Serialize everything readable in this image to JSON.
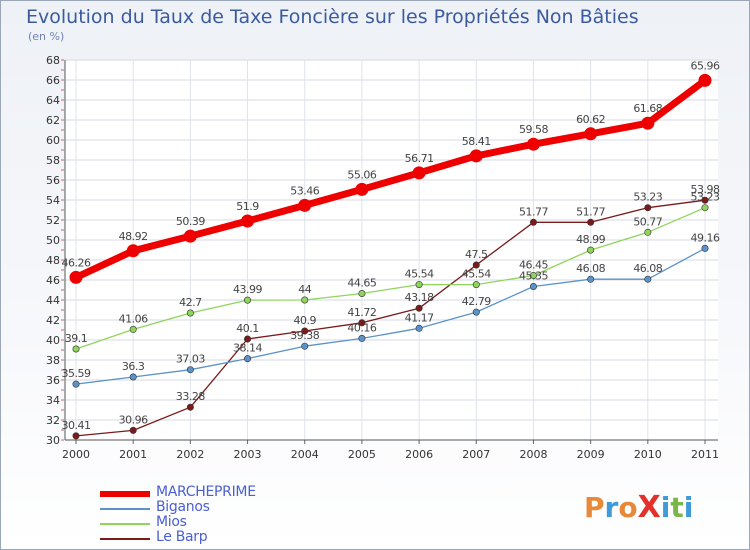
{
  "title": "Evolution du Taux de Taxe Foncière sur les Propriétés Non Bâties",
  "subtitle": "(en %)",
  "logo": {
    "text": "ProXiti",
    "letter_colors": [
      "#e8893a",
      "#3f9ad8",
      "#e8893a",
      "#e2312b",
      "#3f9ad8",
      "#7ab648",
      "#3f9ad8"
    ]
  },
  "chart_data": {
    "type": "line",
    "title": "Evolution du Taux de Taxe Foncière sur les Propriétés Non Bâties",
    "ylabel": "(en %)",
    "xlabel": "",
    "categories": [
      "2000",
      "2001",
      "2002",
      "2003",
      "2004",
      "2005",
      "2006",
      "2007",
      "2008",
      "2009",
      "2010",
      "2011"
    ],
    "ylim": [
      30,
      68
    ],
    "yticks": [
      30,
      32,
      34,
      36,
      38,
      40,
      42,
      44,
      46,
      48,
      50,
      52,
      54,
      56,
      58,
      60,
      62,
      64,
      66,
      68
    ],
    "grid": true,
    "legend_position": "bottom-left",
    "series": [
      {
        "name": "MARCHEPRIME",
        "color": "#ee0000",
        "highlight": true,
        "values": [
          46.26,
          48.92,
          50.39,
          51.9,
          53.46,
          55.06,
          56.71,
          58.41,
          59.58,
          60.62,
          61.68,
          65.96
        ],
        "labels": [
          "46.26",
          "48.92",
          "50.39",
          "51.9",
          "53.46",
          "55.06",
          "56.71",
          "58.41",
          "59.58",
          "60.62",
          "61.68",
          "65.96"
        ]
      },
      {
        "name": "Biganos",
        "color": "#5b93c9",
        "values": [
          35.59,
          36.3,
          37.03,
          38.14,
          39.38,
          40.16,
          41.17,
          42.79,
          45.35,
          46.08,
          46.08,
          49.16
        ],
        "labels": [
          "35.59",
          "36.3",
          "37.03",
          "38.14",
          "39.38",
          "40.16",
          "41.17",
          "42.79",
          "45.35",
          "46.08",
          "46.08",
          "49.16"
        ]
      },
      {
        "name": "Mios",
        "color": "#8fd45b",
        "values": [
          39.1,
          41.06,
          42.7,
          43.99,
          44,
          44.65,
          45.54,
          45.54,
          46.45,
          48.99,
          50.77,
          53.23
        ],
        "labels": [
          "39.1",
          "41.06",
          "42.7",
          "43.99",
          "44",
          "44.65",
          "45.54",
          "45.54",
          "46.45",
          "48.99",
          "50.77",
          "53.23"
        ]
      },
      {
        "name": "Le Barp",
        "color": "#7a1a1a",
        "values": [
          30.41,
          30.96,
          33.28,
          40.1,
          40.9,
          41.72,
          43.18,
          47.5,
          51.77,
          51.77,
          53.23,
          53.98
        ],
        "labels": [
          "30.41",
          "30.96",
          "33.28",
          "40.1",
          "40.9",
          "41.72",
          "43.18",
          "47.5",
          "51.77",
          "51.77",
          "53.23",
          "53.98"
        ]
      }
    ]
  },
  "legend": [
    {
      "name": "MARCHEPRIME",
      "color": "#ee0000",
      "text_color": "#4a5fd1"
    },
    {
      "name": "Biganos",
      "color": "#5b93c9",
      "text_color": "#4a5fd1"
    },
    {
      "name": "Mios",
      "color": "#8fd45b",
      "text_color": "#4a5fd1"
    },
    {
      "name": "Le Barp",
      "color": "#7a1a1a",
      "text_color": "#4a5fd1"
    }
  ]
}
